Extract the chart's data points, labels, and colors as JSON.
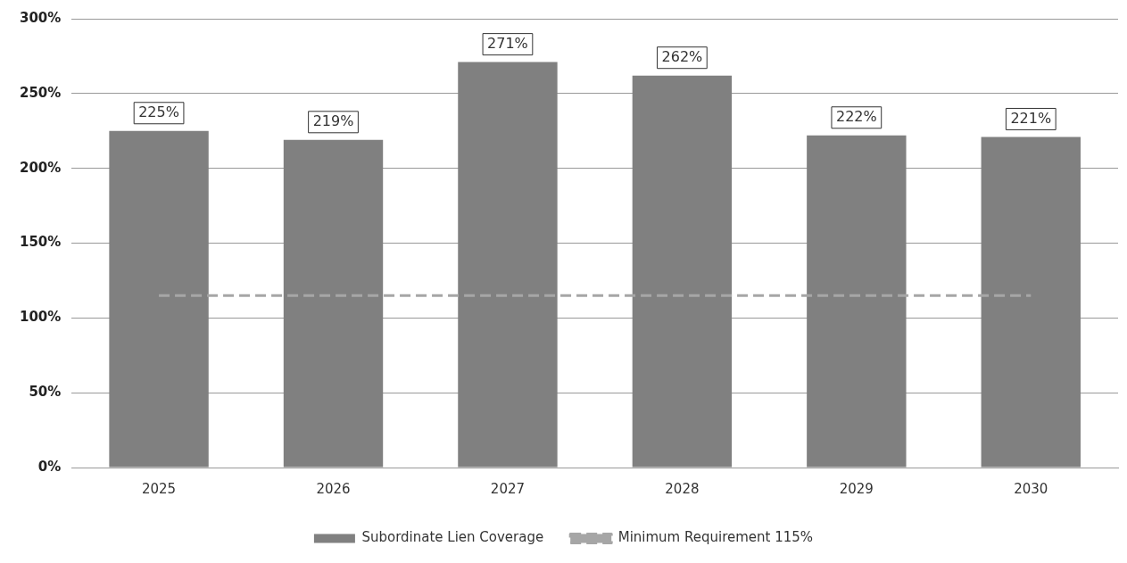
{
  "chart_data": {
    "type": "bar",
    "categories": [
      "2025",
      "2026",
      "2027",
      "2028",
      "2029",
      "2030"
    ],
    "series": [
      {
        "name": "Subordinate Lien Coverage",
        "color": "#808080",
        "values": [
          225,
          219,
          271,
          262,
          222,
          221
        ],
        "value_labels": [
          "225%",
          "219%",
          "271%",
          "262%",
          "222%",
          "221%"
        ]
      },
      {
        "name": "Minimum Requirement 115%",
        "type": "line",
        "color": "#a6a6a6",
        "values": [
          115,
          115,
          115,
          115,
          115,
          115
        ],
        "line_style": "dashed",
        "marker": "none"
      }
    ],
    "ylim": [
      0,
      300
    ],
    "yticks": [
      {
        "value": 0,
        "label": "0%"
      },
      {
        "value": 50,
        "label": "50%"
      },
      {
        "value": 100,
        "label": "100%"
      },
      {
        "value": 150,
        "label": "150%"
      },
      {
        "value": 200,
        "label": "200%"
      },
      {
        "value": 250,
        "label": "250%"
      },
      {
        "value": 300,
        "label": "300%"
      }
    ],
    "grid": "y",
    "legend": "bottom"
  }
}
